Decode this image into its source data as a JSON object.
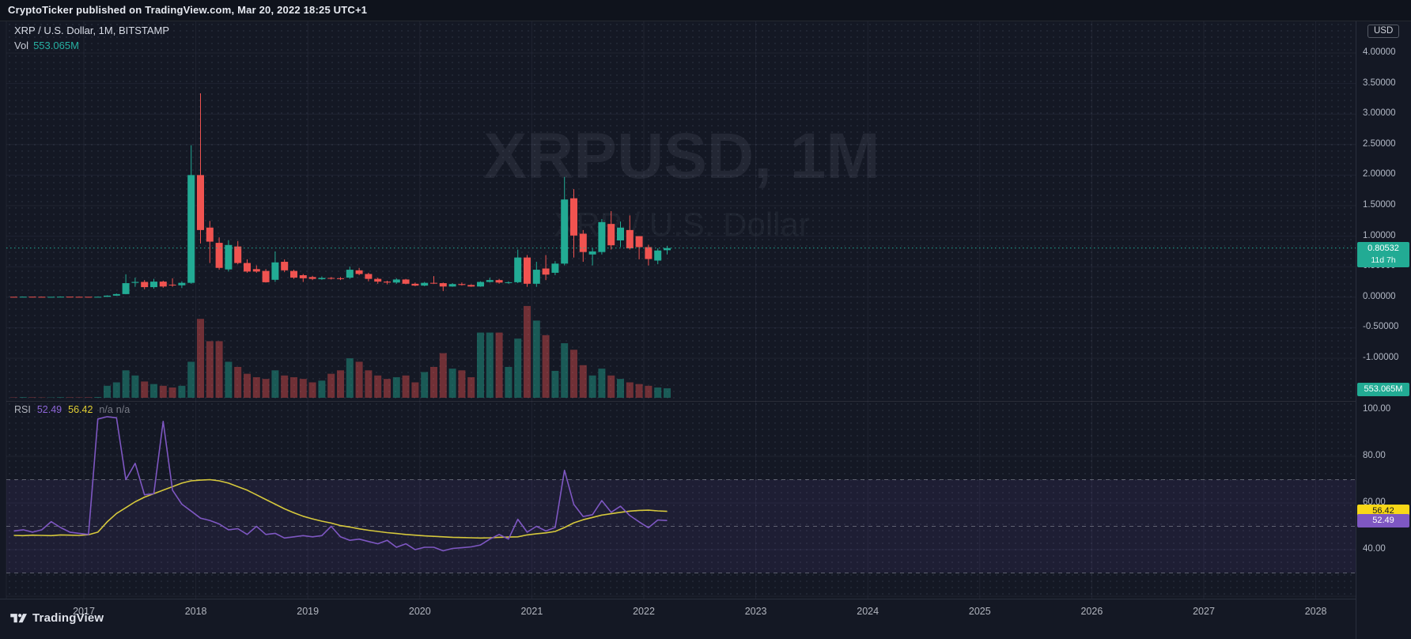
{
  "top_bar": {
    "attribution": "CryptoTicker published on TradingView.com, Mar 20, 2022 18:25 UTC+1"
  },
  "header": {
    "symbol_line": "XRP / U.S. Dollar, 1M, BITSTAMP",
    "vol_label": "Vol",
    "vol_value": "553.065M"
  },
  "watermark": {
    "line1": "XRPUSD, 1M",
    "line2": "XRP / U.S. Dollar"
  },
  "price_axis": {
    "currency_badge": "USD",
    "ticks": [
      "4.00000",
      "3.50000",
      "3.00000",
      "2.50000",
      "2.00000",
      "1.50000",
      "1.00000",
      "0.50000",
      "0.00000",
      "-0.50000",
      "-1.00000"
    ],
    "tick_values": [
      4,
      3.5,
      3,
      2.5,
      2,
      1.5,
      1,
      0.5,
      0,
      -0.5,
      -1
    ],
    "last_price_badge": {
      "price": "0.80532",
      "countdown": "11d 7h"
    },
    "volume_badge": "553.065M"
  },
  "rsi_header": {
    "title": "RSI",
    "value_main": "52.49",
    "value_ma": "56.42",
    "na1": "n/a",
    "na2": "n/a"
  },
  "rsi_axis": {
    "ticks": [
      "100.00",
      "80.00",
      "60.00",
      "40.00"
    ],
    "tick_values": [
      100,
      80,
      60,
      40
    ],
    "badge_ma": "56.42",
    "badge_main": "52.49"
  },
  "time_axis": {
    "years": [
      "2017",
      "2018",
      "2019",
      "2020",
      "2021",
      "2022",
      "2023",
      "2024",
      "2025",
      "2026",
      "2027",
      "2028"
    ]
  },
  "logo": {
    "text": "TradingView"
  },
  "colors": {
    "up": "#22ab94",
    "down": "#f05350",
    "vol_up": "rgba(34,171,148,0.45)",
    "vol_down": "rgba(240,83,80,0.42)",
    "rsi_line": "#7e57c2",
    "rsi_ma_line": "#d6c83c",
    "grid": "rgba(160,172,200,0.08)",
    "level_dash": "rgba(178,181,190,0.45)",
    "band_fill": "rgba(126,87,194,0.10)",
    "last_price": "#22ab94"
  },
  "chart_data": {
    "type": "candlestick",
    "symbol": "XRP / U.S. Dollar",
    "interval": "1M",
    "exchange": "BITSTAMP",
    "last_price": 0.80532,
    "price_axis_range": [
      4.0,
      -1.0
    ],
    "rsi_levels": [
      70,
      50,
      30
    ],
    "candles_ohlcv": [
      [
        "2016-05",
        0.0065,
        0.0075,
        0.0055,
        0.006,
        25
      ],
      [
        "2016-06",
        0.006,
        0.009,
        0.0058,
        0.0078,
        40
      ],
      [
        "2016-07",
        0.0078,
        0.008,
        0.0062,
        0.0066,
        30
      ],
      [
        "2016-08",
        0.0066,
        0.007,
        0.0055,
        0.0058,
        22
      ],
      [
        "2016-09",
        0.0058,
        0.0062,
        0.0052,
        0.006,
        20
      ],
      [
        "2016-10",
        0.006,
        0.0088,
        0.0056,
        0.0082,
        35
      ],
      [
        "2016-11",
        0.0082,
        0.0085,
        0.0062,
        0.0066,
        28
      ],
      [
        "2016-12",
        0.0066,
        0.0068,
        0.006,
        0.0064,
        24
      ],
      [
        "2017-01",
        0.0064,
        0.0068,
        0.0052,
        0.0056,
        30
      ],
      [
        "2017-02",
        0.0056,
        0.007,
        0.0054,
        0.0066,
        45
      ],
      [
        "2017-03",
        0.0066,
        0.03,
        0.0063,
        0.0255,
        700
      ],
      [
        "2017-04",
        0.0255,
        0.06,
        0.024,
        0.051,
        900
      ],
      [
        "2017-05",
        0.051,
        0.375,
        0.048,
        0.23,
        1600
      ],
      [
        "2017-06",
        0.235,
        0.32,
        0.17,
        0.25,
        1300
      ],
      [
        "2017-07",
        0.25,
        0.28,
        0.13,
        0.165,
        950
      ],
      [
        "2017-08",
        0.165,
        0.3,
        0.14,
        0.255,
        800
      ],
      [
        "2017-09",
        0.255,
        0.27,
        0.155,
        0.175,
        700
      ],
      [
        "2017-10",
        0.205,
        0.31,
        0.17,
        0.195,
        600
      ],
      [
        "2017-11",
        0.195,
        0.26,
        0.15,
        0.235,
        700
      ],
      [
        "2017-12",
        0.235,
        2.49,
        0.22,
        2.0,
        2100
      ],
      [
        "2018-01",
        2.0,
        3.34,
        0.88,
        1.1,
        4600
      ],
      [
        "2018-02",
        1.14,
        1.25,
        0.56,
        0.91,
        3300
      ],
      [
        "2018-03",
        0.89,
        0.98,
        0.45,
        0.48,
        3300
      ],
      [
        "2018-04",
        0.455,
        0.935,
        0.42,
        0.855,
        2100
      ],
      [
        "2018-05",
        0.83,
        0.92,
        0.54,
        0.56,
        1800
      ],
      [
        "2018-06",
        0.56,
        0.62,
        0.4,
        0.42,
        1400
      ],
      [
        "2018-07",
        0.46,
        0.52,
        0.4,
        0.42,
        1200
      ],
      [
        "2018-08",
        0.43,
        0.46,
        0.24,
        0.245,
        1100
      ],
      [
        "2018-09",
        0.285,
        0.75,
        0.25,
        0.57,
        1600
      ],
      [
        "2018-10",
        0.58,
        0.62,
        0.41,
        0.44,
        1300
      ],
      [
        "2018-11",
        0.43,
        0.45,
        0.3,
        0.32,
        1200
      ],
      [
        "2018-12",
        0.36,
        0.38,
        0.25,
        0.31,
        1100
      ],
      [
        "2019-01",
        0.33,
        0.35,
        0.28,
        0.3,
        900
      ],
      [
        "2019-02",
        0.295,
        0.34,
        0.285,
        0.315,
        1000
      ],
      [
        "2019-03",
        0.315,
        0.33,
        0.29,
        0.31,
        1400
      ],
      [
        "2019-04",
        0.31,
        0.33,
        0.28,
        0.3,
        1600
      ],
      [
        "2019-05",
        0.32,
        0.5,
        0.3,
        0.45,
        2300
      ],
      [
        "2019-06",
        0.44,
        0.48,
        0.36,
        0.38,
        2100
      ],
      [
        "2019-07",
        0.38,
        0.4,
        0.26,
        0.3,
        1600
      ],
      [
        "2019-08",
        0.3,
        0.32,
        0.22,
        0.255,
        1300
      ],
      [
        "2019-09",
        0.255,
        0.27,
        0.21,
        0.24,
        1100
      ],
      [
        "2019-10",
        0.24,
        0.31,
        0.22,
        0.29,
        1200
      ],
      [
        "2019-11",
        0.29,
        0.3,
        0.21,
        0.22,
        1300
      ],
      [
        "2019-12",
        0.22,
        0.24,
        0.18,
        0.19,
        900
      ],
      [
        "2020-01",
        0.19,
        0.25,
        0.18,
        0.235,
        1500
      ],
      [
        "2020-02",
        0.235,
        0.345,
        0.22,
        0.23,
        1800
      ],
      [
        "2020-03",
        0.23,
        0.24,
        0.1,
        0.175,
        2600
      ],
      [
        "2020-04",
        0.175,
        0.23,
        0.17,
        0.215,
        1700
      ],
      [
        "2020-05",
        0.215,
        0.24,
        0.19,
        0.2,
        1600
      ],
      [
        "2020-06",
        0.2,
        0.21,
        0.17,
        0.175,
        1200
      ],
      [
        "2020-07",
        0.175,
        0.26,
        0.17,
        0.25,
        3800
      ],
      [
        "2020-08",
        0.25,
        0.32,
        0.24,
        0.28,
        3800
      ],
      [
        "2020-09",
        0.28,
        0.3,
        0.22,
        0.24,
        3800
      ],
      [
        "2020-10",
        0.24,
        0.26,
        0.22,
        0.245,
        1800
      ],
      [
        "2020-11",
        0.245,
        0.78,
        0.23,
        0.65,
        3450
      ],
      [
        "2020-12",
        0.65,
        0.69,
        0.17,
        0.22,
        5350
      ],
      [
        "2021-01",
        0.22,
        0.58,
        0.17,
        0.45,
        4500
      ],
      [
        "2021-02",
        0.47,
        0.69,
        0.28,
        0.37,
        3650
      ],
      [
        "2021-03",
        0.4,
        0.59,
        0.36,
        0.55,
        1570
      ],
      [
        "2021-04",
        0.55,
        1.97,
        0.52,
        1.6,
        3180
      ],
      [
        "2021-05",
        1.62,
        1.77,
        0.65,
        1.01,
        2800
      ],
      [
        "2021-06",
        1.04,
        1.1,
        0.58,
        0.74,
        1900
      ],
      [
        "2021-07",
        0.7,
        0.8,
        0.52,
        0.75,
        1300
      ],
      [
        "2021-08",
        0.74,
        1.28,
        0.7,
        1.23,
        1700
      ],
      [
        "2021-09",
        1.2,
        1.41,
        0.78,
        0.85,
        1300
      ],
      [
        "2021-10",
        0.93,
        1.24,
        0.82,
        1.14,
        1100
      ],
      [
        "2021-11",
        1.1,
        1.34,
        0.78,
        0.8,
        900
      ],
      [
        "2021-12",
        1.0,
        1.0,
        0.62,
        0.82,
        800
      ],
      [
        "2022-01",
        0.82,
        0.86,
        0.52,
        0.625,
        700
      ],
      [
        "2022-02",
        0.6,
        0.8,
        0.54,
        0.765,
        600
      ],
      [
        "2022-03",
        0.77,
        0.84,
        0.7,
        0.805,
        553.065
      ]
    ],
    "rsi_values": [
      48,
      48.5,
      47.5,
      48.5,
      52,
      49.5,
      47.5,
      47,
      46.5,
      96,
      97,
      96.5,
      70,
      77,
      63.5,
      64,
      95,
      65.5,
      59.5,
      56.5,
      53.5,
      52.5,
      51,
      48.5,
      49,
      46.5,
      50,
      46.5,
      47,
      45,
      45.5,
      46,
      45.5,
      46,
      50,
      45.5,
      44,
      44.5,
      43.5,
      42.5,
      44,
      41,
      42.5,
      40,
      41,
      41,
      39.5,
      40.5,
      40.8,
      41.2,
      42,
      44.5,
      46.5,
      44.5,
      53,
      47.5,
      50,
      48,
      49.5,
      74,
      59.4,
      54.2,
      55,
      61,
      56,
      58.6,
      54.6,
      51.9,
      49.4,
      52.7,
      52.49
    ],
    "rsi_ma_values": [
      46.1,
      46.0,
      46.2,
      46.1,
      46.0,
      46.3,
      46.2,
      46.1,
      46.4,
      47.5,
      51.9,
      55.5,
      58,
      60.5,
      62.5,
      64,
      65.5,
      67,
      68.5,
      69.5,
      69.8,
      70,
      69.5,
      68.5,
      67,
      65.5,
      63.5,
      61.5,
      59.5,
      57.5,
      55.8,
      54.3,
      53.2,
      52.2,
      51.4,
      50.3,
      49.7,
      48.9,
      48.3,
      47.8,
      47.3,
      46.9,
      46.5,
      46.2,
      45.9,
      45.7,
      45.5,
      45.3,
      45.2,
      45.1,
      45.0,
      45.1,
      45.3,
      45.4,
      45.5,
      46.3,
      46.8,
      47.2,
      47.8,
      49.5,
      51.5,
      52.8,
      53.8,
      54.8,
      55.4,
      56.0,
      56.5,
      56.8,
      56.9,
      56.6,
      56.42
    ]
  }
}
